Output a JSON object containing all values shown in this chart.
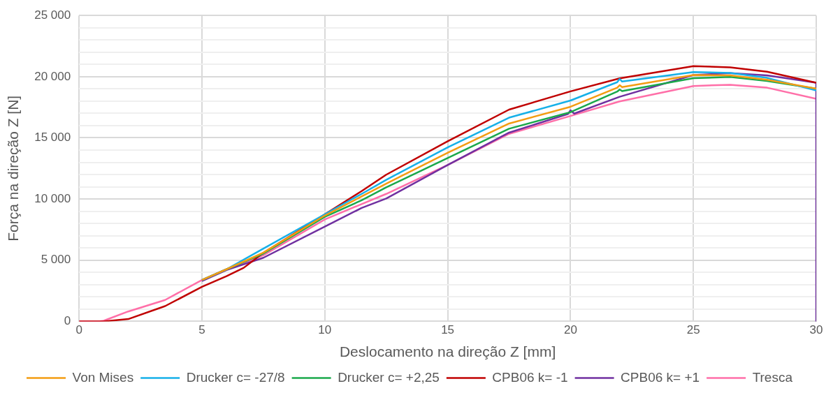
{
  "chart_data": {
    "type": "line",
    "xlabel": "Deslocamento na direção Z [mm]",
    "ylabel": "Força na direção Z [N]",
    "xlim": [
      0,
      30
    ],
    "xticks": [
      0,
      5,
      10,
      15,
      20,
      25,
      30
    ],
    "ylim": [
      0,
      25000
    ],
    "yticks": [
      0,
      {
        "value": 1000,
        "label": null
      },
      {
        "value": 2000,
        "label": null
      },
      {
        "value": 3000,
        "label": null
      },
      {
        "value": 4000,
        "label": null
      },
      {
        "value": 5000,
        "label": "5 000"
      },
      {
        "value": 6000,
        "label": null
      },
      {
        "value": 7000,
        "label": null
      },
      {
        "value": 8000,
        "label": null
      },
      {
        "value": 9000,
        "label": null
      },
      {
        "value": 10000,
        "label": "10 000"
      },
      {
        "value": 11000,
        "label": null
      },
      {
        "value": 12000,
        "label": null
      },
      {
        "value": 13000,
        "label": null
      },
      {
        "value": 14000,
        "label": null
      },
      {
        "value": 15000,
        "label": "15 000"
      },
      {
        "value": 16000,
        "label": null
      },
      {
        "value": 17000,
        "label": null
      },
      {
        "value": 18000,
        "label": null
      },
      {
        "value": 19000,
        "label": null
      },
      {
        "value": 20000,
        "label": "20 000"
      },
      {
        "value": 21000,
        "label": null
      },
      {
        "value": 22000,
        "label": null
      },
      {
        "value": 23000,
        "label": null
      },
      {
        "value": 24000,
        "label": null
      },
      {
        "value": 25000,
        "label": "25 000"
      }
    ],
    "grid": true,
    "legend": "bottom",
    "marker": "none",
    "line_style": "solid",
    "series": [
      {
        "name": "Von Mises",
        "color": "#f39c12",
        "x": [
          5,
          6,
          7.5,
          10,
          11.5,
          12.5,
          15,
          17.5,
          20,
          21.9,
          22,
          22.1,
          25,
          26.5,
          28,
          30
        ],
        "values": [
          3380,
          4260,
          5620,
          8650,
          10210,
          11260,
          13780,
          16170,
          17540,
          19100,
          19300,
          19150,
          20130,
          20110,
          19750,
          19020
        ]
      },
      {
        "name": "Drucker c= -27/8",
        "color": "#16b0e8",
        "x": [
          5,
          6,
          7.5,
          10,
          11.5,
          12.5,
          15,
          17.5,
          20,
          21.9,
          22,
          22.1,
          25,
          26.5,
          28,
          30
        ],
        "values": [
          3380,
          4260,
          5950,
          8750,
          10420,
          11570,
          14220,
          16650,
          18050,
          19550,
          19820,
          19600,
          20380,
          20300,
          19900,
          18880
        ]
      },
      {
        "name": "Drucker c= +2,25",
        "color": "#1aa84b",
        "x": [
          5,
          6,
          7.5,
          10,
          11.5,
          12.5,
          15,
          17.5,
          20,
          21.9,
          22,
          22.1,
          25,
          26.5,
          28,
          30
        ],
        "values": [
          3380,
          4260,
          5540,
          8540,
          9900,
          10950,
          13350,
          15750,
          17100,
          18780,
          18950,
          18820,
          19880,
          19970,
          19650,
          19020
        ]
      },
      {
        "name": "CPB06 k= -1",
        "color": "#c00000",
        "x": [
          0,
          1,
          2,
          3.5,
          5,
          6,
          6.7,
          7.5,
          10,
          11.5,
          12.5,
          15,
          17.5,
          20,
          22,
          25,
          26.5,
          28,
          30
        ],
        "values": [
          0,
          0,
          190,
          1250,
          2820,
          3700,
          4380,
          5600,
          8750,
          10650,
          11990,
          14720,
          17310,
          18800,
          19860,
          20860,
          20760,
          20400,
          19510
        ]
      },
      {
        "name": "CPB06 k= +1",
        "color": "#7030a0",
        "x": [
          5,
          6,
          7.5,
          10,
          11.5,
          12.5,
          15,
          17.5,
          19.9,
          20,
          20.15,
          22,
          25,
          26.5,
          28,
          30,
          30
        ],
        "values": [
          3300,
          4200,
          5200,
          7750,
          9270,
          10040,
          12780,
          15430,
          16950,
          17250,
          16980,
          18360,
          20130,
          20290,
          20100,
          19510,
          0
        ]
      },
      {
        "name": "Tresca",
        "color": "#ff6fa8",
        "x": [
          0,
          0.8,
          1,
          2,
          3.5,
          5,
          6,
          7.5,
          10,
          11.5,
          12.5,
          15,
          17.5,
          20,
          22,
          25,
          26.5,
          28,
          30
        ],
        "values": [
          0,
          0,
          50,
          810,
          1750,
          3380,
          4260,
          5410,
          8330,
          9590,
          10420,
          12780,
          15330,
          16790,
          17980,
          19240,
          19340,
          19100,
          18190
        ]
      }
    ]
  }
}
